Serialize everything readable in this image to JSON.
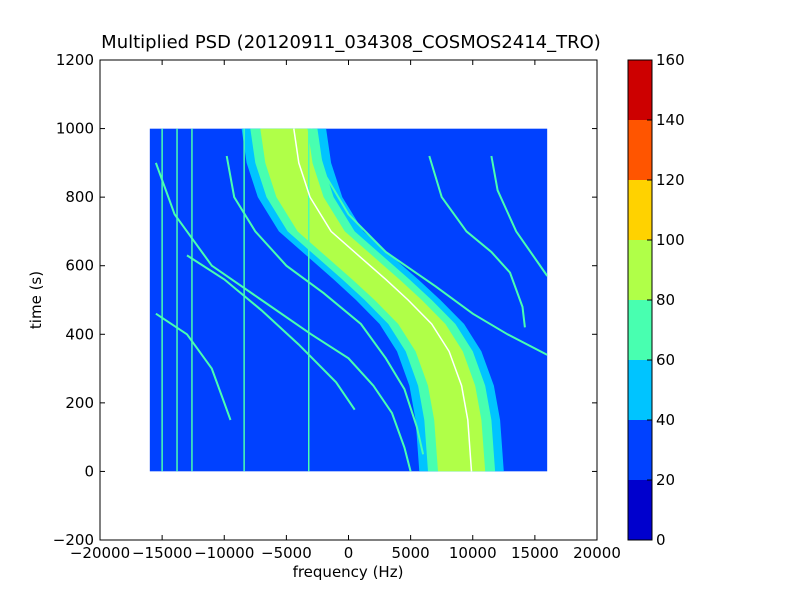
{
  "chart_data": {
    "type": "heatmap",
    "title": "Multiplied PSD (20120911_034308_COSMOS2414_TRO)",
    "xlabel": "frequency (Hz)",
    "ylabel": "time (s)",
    "xlim": [
      -20000,
      20000
    ],
    "ylim": [
      -200,
      1200
    ],
    "x_ticks": [
      -20000,
      -15000,
      -10000,
      -5000,
      0,
      5000,
      10000,
      15000,
      20000
    ],
    "x_tick_labels": [
      "−20000",
      "−15000",
      "−10000",
      "−5000",
      "0",
      "5000",
      "10000",
      "15000",
      "20000"
    ],
    "y_ticks": [
      -200,
      0,
      200,
      400,
      600,
      800,
      1000,
      1200
    ],
    "y_tick_labels": [
      "−200",
      "0",
      "200",
      "400",
      "600",
      "800",
      "1000",
      "1200"
    ],
    "data_extent": {
      "x": [
        -16000,
        16000
      ],
      "y": [
        0,
        1000
      ]
    },
    "background_level": 30,
    "main_trace": {
      "center_points": [
        [
          -5200,
          1000
        ],
        [
          -4800,
          900
        ],
        [
          -3900,
          800
        ],
        [
          -2200,
          700
        ],
        [
          0,
          630
        ],
        [
          2200,
          560
        ],
        [
          4000,
          500
        ],
        [
          5900,
          430
        ],
        [
          7300,
          350
        ],
        [
          8300,
          250
        ],
        [
          8800,
          150
        ],
        [
          9100,
          0
        ]
      ],
      "bands": [
        {
          "level": 90,
          "half_width": 1900
        },
        {
          "level": 70,
          "half_width": 2700
        },
        {
          "level": 50,
          "half_width": 3400
        }
      ],
      "line_level": 150
    },
    "thin_traces": [
      {
        "level": 60,
        "points": [
          [
            -15500,
            900
          ],
          [
            -14000,
            750
          ],
          [
            -11000,
            600
          ],
          [
            -7000,
            500
          ],
          [
            -3000,
            400
          ],
          [
            0,
            330
          ],
          [
            2000,
            250
          ],
          [
            3500,
            170
          ],
          [
            4500,
            70
          ],
          [
            5000,
            0
          ]
        ]
      },
      {
        "level": 60,
        "points": [
          [
            -15500,
            460
          ],
          [
            -13000,
            400
          ],
          [
            -11000,
            300
          ],
          [
            -10000,
            200
          ],
          [
            -9500,
            150
          ]
        ]
      },
      {
        "level": 60,
        "points": [
          [
            -9800,
            920
          ],
          [
            -9200,
            800
          ],
          [
            -7500,
            700
          ],
          [
            -5000,
            600
          ],
          [
            -2000,
            520
          ],
          [
            1000,
            430
          ],
          [
            3000,
            330
          ],
          [
            4500,
            240
          ],
          [
            5500,
            130
          ],
          [
            6000,
            50
          ]
        ]
      },
      {
        "level": 60,
        "points": [
          [
            -13000,
            630
          ],
          [
            -10000,
            560
          ],
          [
            -7000,
            470
          ],
          [
            -4000,
            370
          ],
          [
            -1000,
            260
          ],
          [
            500,
            180
          ]
        ]
      },
      {
        "level": 60,
        "points": [
          [
            6500,
            920
          ],
          [
            7500,
            800
          ],
          [
            9500,
            700
          ],
          [
            11500,
            640
          ],
          [
            13000,
            580
          ],
          [
            14000,
            480
          ],
          [
            14200,
            420
          ]
        ]
      },
      {
        "level": 60,
        "points": [
          [
            11500,
            920
          ],
          [
            12000,
            820
          ],
          [
            13500,
            700
          ],
          [
            16000,
            570
          ]
        ]
      },
      {
        "level": 60,
        "points": [
          [
            -3000,
            1000
          ],
          [
            -1800,
            860
          ],
          [
            0,
            750
          ],
          [
            3000,
            640
          ],
          [
            7000,
            540
          ],
          [
            10000,
            460
          ],
          [
            12800,
            400
          ],
          [
            16000,
            340
          ]
        ]
      }
    ],
    "vertical_lines": [
      {
        "x": -15000,
        "level": 60
      },
      {
        "x": -13800,
        "level": 60
      },
      {
        "x": -12600,
        "level": 60
      },
      {
        "x": -8400,
        "level": 60
      },
      {
        "x": -3200,
        "level": 60
      }
    ],
    "colorbar": {
      "min": 0,
      "max": 160,
      "ticks": [
        0,
        20,
        40,
        60,
        80,
        100,
        120,
        140,
        160
      ],
      "tick_labels": [
        "0",
        "20",
        "40",
        "60",
        "80",
        "100",
        "120",
        "140",
        "160"
      ],
      "levels": [
        {
          "from": 0,
          "to": 20,
          "color": "#0000cd"
        },
        {
          "from": 20,
          "to": 40,
          "color": "#0041ff"
        },
        {
          "from": 40,
          "to": 60,
          "color": "#00c4ff"
        },
        {
          "from": 60,
          "to": 80,
          "color": "#48ffb0"
        },
        {
          "from": 80,
          "to": 100,
          "color": "#b0ff48"
        },
        {
          "from": 100,
          "to": 120,
          "color": "#ffd200"
        },
        {
          "from": 120,
          "to": 140,
          "color": "#ff5500"
        },
        {
          "from": 140,
          "to": 160,
          "color": "#cd0000"
        }
      ]
    }
  }
}
